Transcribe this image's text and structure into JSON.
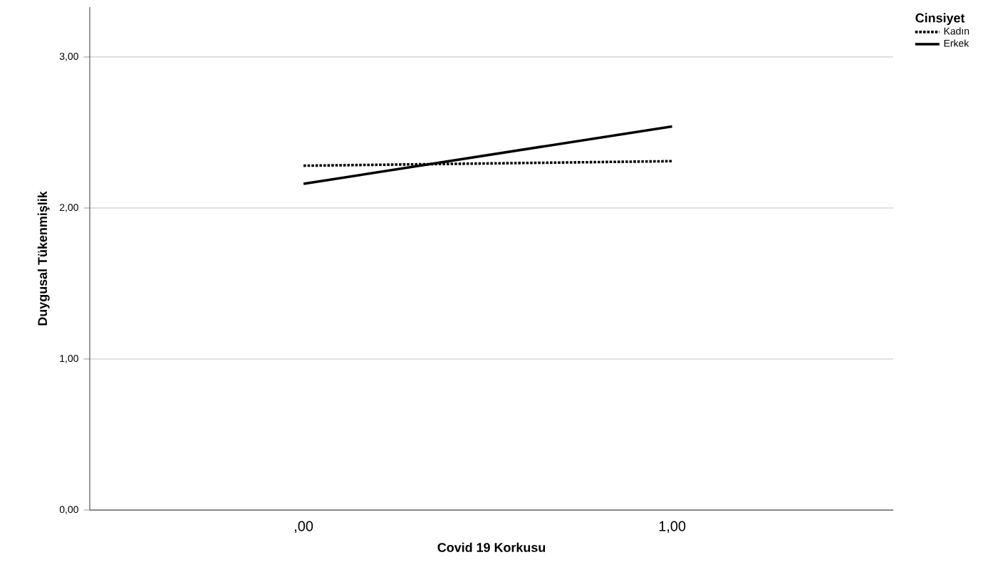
{
  "chart_data": {
    "type": "line",
    "xlabel": "Covid 19 Korkusu",
    "ylabel": "Duygusal Tükenmişlik",
    "legend_title": "Cinsiyet",
    "categories": [
      ",00",
      "1,00"
    ],
    "series": [
      {
        "name": "Kadın",
        "color": "#000000",
        "line_style": "dotted",
        "values": [
          2.28,
          2.31
        ]
      },
      {
        "name": "Erkek",
        "color": "#000000",
        "line_style": "solid",
        "values": [
          2.16,
          2.54
        ]
      }
    ],
    "ylim": [
      0,
      3.33
    ],
    "yticks": [
      {
        "value": 0,
        "label": "0,00"
      },
      {
        "value": 1,
        "label": "1,00"
      },
      {
        "value": 2,
        "label": "2,00"
      },
      {
        "value": 3,
        "label": "3,00"
      }
    ],
    "grid": "y",
    "legend": "top right",
    "marker": "none"
  }
}
